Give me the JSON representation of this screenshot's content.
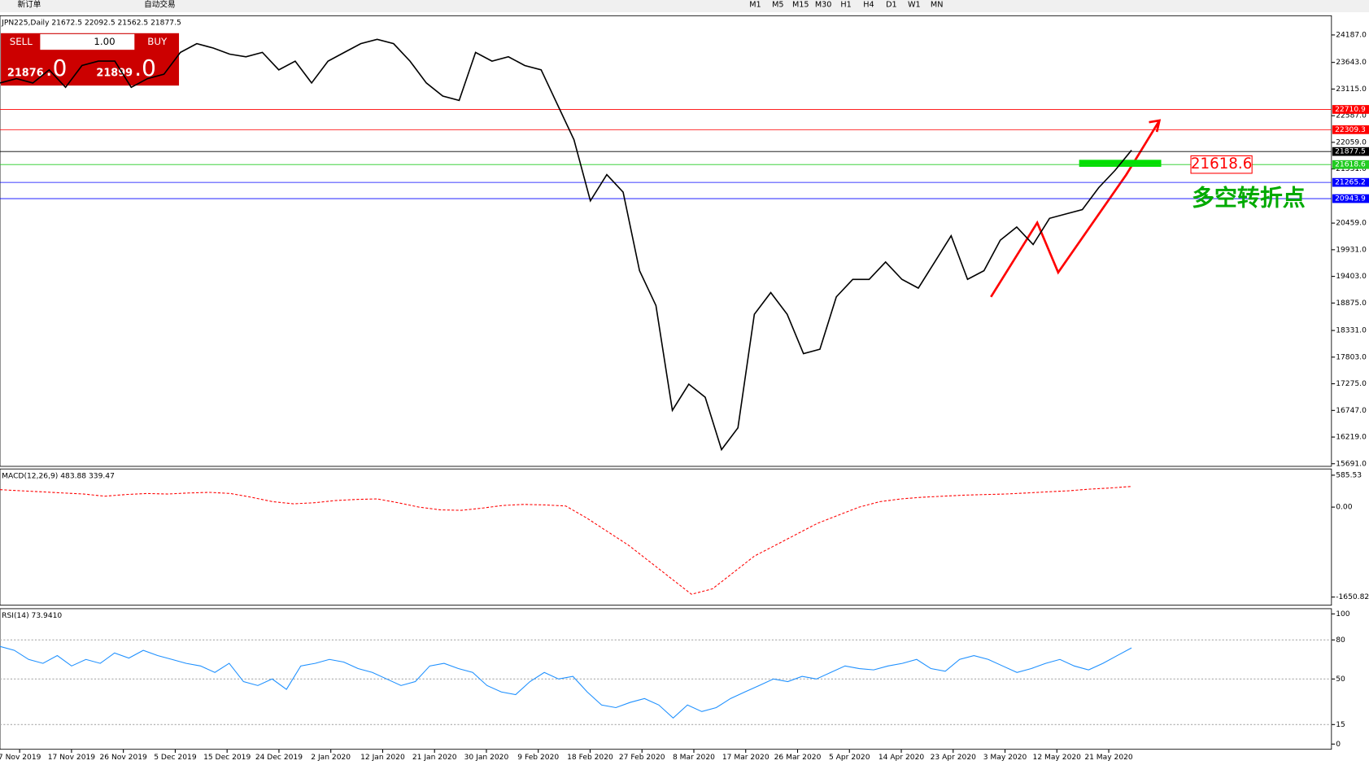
{
  "toolbar": {
    "new_order": "新订单",
    "auto_trading": "自动交易",
    "timeframes": [
      "M1",
      "M5",
      "M15",
      "M30",
      "H1",
      "H4",
      "D1",
      "W1",
      "MN"
    ]
  },
  "trade_panel": {
    "sell": "SELL",
    "lot": "1.00",
    "buy": "BUY",
    "bid_main": "21876",
    "bid_frac": ".0",
    "ask_main": "21899",
    "ask_frac": ".0"
  },
  "chart_data": [
    {
      "type": "line",
      "title": "JPN225,Daily  21672.5 22092.5 21562.5 21877.5",
      "color": "#000000",
      "x_tick_labels": [
        "7 Nov 2019",
        "17 Nov 2019",
        "26 Nov 2019",
        "5 Dec 2019",
        "15 Dec 2019",
        "24 Dec 2019",
        "2 Jan 2020",
        "12 Jan 2020",
        "21 Jan 2020",
        "30 Jan 2020",
        "9 Feb 2020",
        "18 Feb 2020",
        "27 Feb 2020",
        "8 Mar 2020",
        "17 Mar 2020",
        "26 Mar 2020",
        "5 Apr 2020",
        "14 Apr 2020",
        "23 Apr 2020",
        "3 May 2020",
        "12 May 2020",
        "21 May 2020"
      ],
      "values": [
        23235,
        23322,
        23235,
        23495,
        23149,
        23581,
        23668,
        23668,
        23149,
        23322,
        23408,
        23841,
        24014,
        23927,
        23806,
        23754,
        23841,
        23495,
        23668,
        23235,
        23668,
        23841,
        24014,
        24100,
        24014,
        23668,
        23235,
        22976,
        22889,
        23841,
        23668,
        23754,
        23581,
        23495,
        22803,
        22111,
        20900,
        21419,
        21073,
        19516,
        18824,
        16748,
        17268,
        17008,
        15969,
        16402,
        18651,
        19083,
        18651,
        17872,
        17959,
        18997,
        19343,
        19343,
        19689,
        19343,
        19170,
        19689,
        20208,
        19343,
        19516,
        20121,
        20381,
        20035,
        20554,
        20640,
        20727,
        21160,
        21506,
        21903
      ],
      "ylim": [
        15639,
        24568
      ],
      "yticks": [
        {
          "value": 15691,
          "label": "15691.0"
        },
        {
          "value": 16219,
          "label": "16219.0"
        },
        {
          "value": 16747,
          "label": "16747.0"
        },
        {
          "value": 17275,
          "label": "17275.0"
        },
        {
          "value": 17803,
          "label": "17803.0"
        },
        {
          "value": 18331,
          "label": "18331.0"
        },
        {
          "value": 18875,
          "label": "18875.0"
        },
        {
          "value": 19403,
          "label": "19403.0"
        },
        {
          "value": 19931,
          "label": "19931.0"
        },
        {
          "value": 20459,
          "label": "20459.0"
        },
        {
          "value": 21531,
          "label": "21531.0"
        },
        {
          "value": 22059,
          "label": "22059.0"
        },
        {
          "value": 22587,
          "label": "22587.0"
        },
        {
          "value": 23115,
          "label": "23115.0"
        },
        {
          "value": 23643,
          "label": "23643.0"
        },
        {
          "value": 24187,
          "label": "24187.0"
        }
      ],
      "levels": [
        {
          "value": 22710.9,
          "color": "#ff0000"
        },
        {
          "value": 22309.3,
          "color": "#ff0000"
        },
        {
          "value": 21877.5,
          "color": "#000000"
        },
        {
          "value": 21618.6,
          "color": "#22cc22"
        },
        {
          "value": 21265.2,
          "color": "#0000ff"
        },
        {
          "value": 20943.9,
          "color": "#0000ff"
        }
      ],
      "marker_label": 21618.6,
      "annotation": "多空转折点"
    },
    {
      "type": "line",
      "title": "MACD(12,26,9) 483.88 339.47",
      "color": "#ff0000",
      "values": [
        320,
        300,
        280,
        260,
        240,
        200,
        230,
        250,
        240,
        260,
        270,
        250,
        180,
        100,
        60,
        80,
        120,
        140,
        150,
        80,
        0,
        -50,
        -60,
        -20,
        30,
        50,
        40,
        20,
        -200,
        -450,
        -700,
        -1000,
        -1300,
        -1600,
        -1500,
        -1200,
        -900,
        -700,
        -500,
        -300,
        -150,
        0,
        100,
        150,
        180,
        200,
        220,
        230,
        240,
        260,
        280,
        300,
        330,
        350,
        380
      ],
      "ylim": [
        -1800,
        700
      ],
      "yticks": [
        {
          "value": 585.53,
          "label": "585.53"
        },
        {
          "value": 0,
          "label": "0.00"
        },
        {
          "value": -1650.82,
          "label": "-1650.82"
        }
      ]
    },
    {
      "type": "line",
      "title": "RSI(14) 73.9410",
      "color": "#1e90ff",
      "values": [
        75,
        72,
        65,
        62,
        68,
        60,
        65,
        62,
        70,
        66,
        72,
        68,
        65,
        62,
        60,
        55,
        62,
        48,
        45,
        50,
        42,
        60,
        62,
        65,
        63,
        58,
        55,
        50,
        45,
        48,
        60,
        62,
        58,
        55,
        45,
        40,
        38,
        48,
        55,
        50,
        52,
        40,
        30,
        28,
        32,
        35,
        30,
        20,
        30,
        25,
        28,
        35,
        40,
        45,
        50,
        48,
        52,
        50,
        55,
        60,
        58,
        57,
        60,
        62,
        65,
        58,
        56,
        65,
        68,
        65,
        60,
        55,
        58,
        62,
        65,
        60,
        57,
        62,
        68,
        73.9
      ],
      "ylim": [
        -4,
        104
      ],
      "yticks": [
        0,
        15,
        50,
        80,
        100
      ]
    }
  ]
}
